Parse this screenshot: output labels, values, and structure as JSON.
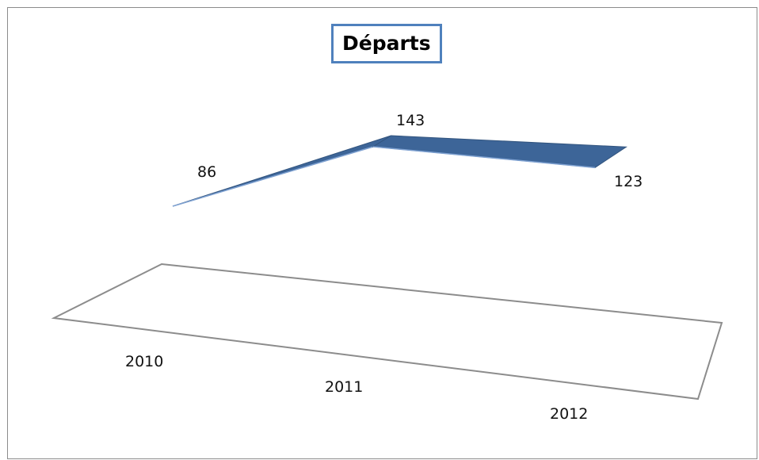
{
  "chart_data": {
    "type": "line",
    "title": "Départs",
    "categories": [
      "2010",
      "2011",
      "2012"
    ],
    "series": [
      {
        "values": [
          86,
          143,
          123
        ],
        "color": "#3d6598"
      }
    ],
    "xlabel": "",
    "ylabel": "",
    "grid": false,
    "legend": "none",
    "floor_color": "#ffffff",
    "floor_stroke": "#8c8c8c"
  }
}
